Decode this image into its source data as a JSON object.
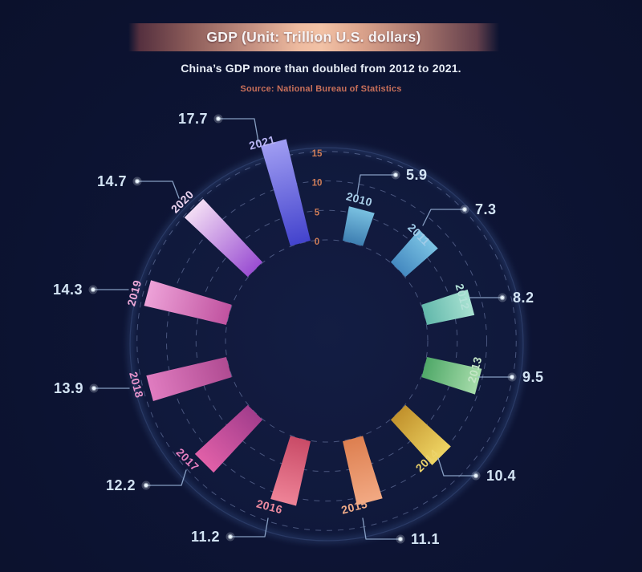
{
  "header": {
    "title": "GDP (Unit: Trillion U.S. dollars)",
    "subtitle": "China’s GDP more than doubled from 2012 to 2021.",
    "source": "Source: National Bureau of Statistics"
  },
  "chart_data": {
    "type": "bar",
    "variant": "radial-polar",
    "title": "GDP (Unit: Trillion U.S. dollars)",
    "unit": "Trillion U.S. dollars",
    "categories": [
      "2010",
      "2011",
      "2012",
      "2013",
      "2014",
      "2015",
      "2016",
      "2017",
      "2018",
      "2019",
      "2020",
      "2021"
    ],
    "values": [
      5.9,
      7.3,
      8.2,
      9.5,
      10.4,
      11.1,
      11.2,
      12.2,
      13.9,
      14.3,
      14.7,
      17.7
    ],
    "radial_ticks": [
      0,
      5,
      10,
      15
    ],
    "radial_axis_range": [
      0,
      17.7
    ],
    "grid": "dashed-concentric-circles",
    "legend": "none",
    "series_styles": [
      {
        "year": "2010",
        "inner": "#3e7fb2",
        "outer": "#79c0e0",
        "label": "#a9cfe9"
      },
      {
        "year": "2011",
        "inner": "#4489c0",
        "outer": "#7cc4e4",
        "label": "#9fcbe8"
      },
      {
        "year": "2012",
        "inner": "#62b8ab",
        "outer": "#a9e2d2",
        "label": "#b3e2d8"
      },
      {
        "year": "2013",
        "inner": "#4fa868",
        "outer": "#a6dcaa",
        "label": "#c4e6c6"
      },
      {
        "year": "2014",
        "inner": "#c1912c",
        "outer": "#eed463",
        "label": "#ecd36a"
      },
      {
        "year": "2015",
        "inner": "#dd7f50",
        "outer": "#f2a983",
        "label": "#f0ac88"
      },
      {
        "year": "2016",
        "inner": "#c94b67",
        "outer": "#ee8397",
        "label": "#ef8ba0"
      },
      {
        "year": "2017",
        "inner": "#a23d8c",
        "outer": "#e160a8",
        "label": "#e57fc0"
      },
      {
        "year": "2018",
        "inner": "#b04b92",
        "outer": "#e07cc0",
        "label": "#e793cb"
      },
      {
        "year": "2019",
        "inner": "#c0529f",
        "outer": "#eda2d8",
        "label": "#efaad9"
      },
      {
        "year": "2020",
        "inner": "#9a4ed2",
        "outer": "#f2dcf4",
        "label": "#ecd4f0"
      },
      {
        "year": "2021",
        "inner": "#4343cd",
        "outer": "#a09df2",
        "label": "#b9b4f4"
      }
    ],
    "colors": {
      "background": "#0d1434",
      "tick_labels": "#ce7c57",
      "value_labels": "#d3e4f4",
      "leader_lines": "#9cb6da",
      "leader_dots": "#ecf7ff",
      "grid_rings": "rgba(152,170,216,0.42)",
      "rim_glow": "rgba(110,160,240,0.25)",
      "banner_gradient": [
        "#55303f",
        "#f2c2a6",
        "#64404c"
      ]
    }
  }
}
